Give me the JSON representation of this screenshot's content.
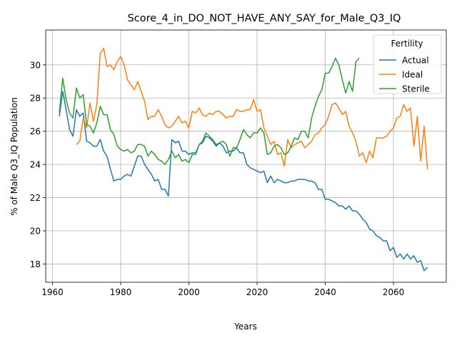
{
  "chart_data": {
    "type": "line",
    "title": "Score_4_in_DO_NOT_HAVE_ANY_SAY_for_Male_Q3_IQ",
    "xlabel": "Years",
    "ylabel": "% of Male Q3_IQ Population",
    "xlim": [
      1958,
      2075.5
    ],
    "ylim": [
      16.9,
      32.1
    ],
    "xticks": [
      1960,
      1980,
      2000,
      2020,
      2040,
      2060
    ],
    "yticks": [
      18,
      20,
      22,
      24,
      26,
      28,
      30
    ],
    "grid": true,
    "legend": {
      "title": "Fertility",
      "placement": "top-right"
    },
    "series": [
      {
        "name": "Actual",
        "color": "#1f77b4",
        "points": [
          [
            1962,
            26.9
          ],
          [
            1963,
            28.4
          ],
          [
            1964,
            27.3
          ],
          [
            1965,
            26.1
          ],
          [
            1966,
            25.7
          ],
          [
            1967,
            27.3
          ],
          [
            1968,
            26.9
          ],
          [
            1969,
            27.1
          ],
          [
            1970,
            25.4
          ],
          [
            1971,
            25.3
          ],
          [
            1972,
            25.1
          ],
          [
            1973,
            25.1
          ],
          [
            1974,
            25.5
          ],
          [
            1975,
            24.8
          ],
          [
            1976,
            24.5
          ],
          [
            1977,
            23.7
          ],
          [
            1978,
            23.0
          ],
          [
            1979,
            23.1
          ],
          [
            1980,
            23.1
          ],
          [
            1981,
            23.3
          ],
          [
            1982,
            23.4
          ],
          [
            1983,
            23.3
          ],
          [
            1984,
            23.9
          ],
          [
            1985,
            24.5
          ],
          [
            1986,
            24.5
          ],
          [
            1987,
            24.0
          ],
          [
            1988,
            23.7
          ],
          [
            1989,
            23.4
          ],
          [
            1990,
            23.0
          ],
          [
            1991,
            23.1
          ],
          [
            1992,
            22.5
          ],
          [
            1993,
            22.5
          ],
          [
            1994,
            22.1
          ],
          [
            1995,
            25.5
          ],
          [
            1996,
            25.3
          ],
          [
            1997,
            25.4
          ],
          [
            1998,
            24.8
          ],
          [
            1999,
            24.8
          ],
          [
            2000,
            24.6
          ],
          [
            2001,
            24.7
          ],
          [
            2002,
            24.7
          ],
          [
            2003,
            25.2
          ],
          [
            2004,
            25.3
          ],
          [
            2005,
            25.7
          ],
          [
            2006,
            25.6
          ],
          [
            2007,
            25.4
          ],
          [
            2008,
            25.1
          ],
          [
            2009,
            25.3
          ],
          [
            2010,
            25.1
          ],
          [
            2011,
            24.7
          ],
          [
            2012,
            24.8
          ],
          [
            2013,
            24.8
          ],
          [
            2014,
            25.0
          ],
          [
            2015,
            24.7
          ],
          [
            2016,
            24.7
          ],
          [
            2017,
            24.0
          ],
          [
            2018,
            23.8
          ],
          [
            2019,
            23.7
          ],
          [
            2020,
            23.6
          ],
          [
            2021,
            23.5
          ],
          [
            2022,
            23.6
          ],
          [
            2023,
            22.9
          ],
          [
            2024,
            23.3
          ],
          [
            2025,
            22.9
          ],
          [
            2026,
            23.1
          ],
          [
            2027,
            23.0
          ],
          [
            2028,
            22.9
          ],
          [
            2029,
            22.9
          ],
          [
            2030,
            23.0
          ],
          [
            2031,
            23.0
          ],
          [
            2032,
            23.1
          ],
          [
            2033,
            23.1
          ],
          [
            2034,
            23.1
          ],
          [
            2035,
            23.0
          ],
          [
            2036,
            23.0
          ],
          [
            2037,
            22.9
          ],
          [
            2038,
            22.5
          ],
          [
            2039,
            22.5
          ],
          [
            2040,
            21.9
          ],
          [
            2041,
            21.9
          ],
          [
            2042,
            21.8
          ],
          [
            2043,
            21.7
          ],
          [
            2044,
            21.5
          ],
          [
            2045,
            21.5
          ],
          [
            2046,
            21.3
          ],
          [
            2047,
            21.5
          ],
          [
            2048,
            21.2
          ],
          [
            2049,
            21.2
          ],
          [
            2050,
            21.0
          ],
          [
            2051,
            20.7
          ],
          [
            2052,
            20.5
          ],
          [
            2053,
            20.1
          ],
          [
            2054,
            20.0
          ],
          [
            2055,
            19.7
          ],
          [
            2056,
            19.6
          ],
          [
            2057,
            19.4
          ],
          [
            2058,
            19.4
          ],
          [
            2059,
            18.8
          ],
          [
            2060,
            19.0
          ],
          [
            2061,
            18.4
          ],
          [
            2062,
            18.6
          ],
          [
            2063,
            18.3
          ],
          [
            2064,
            18.6
          ],
          [
            2065,
            18.3
          ],
          [
            2066,
            18.5
          ],
          [
            2067,
            18.1
          ],
          [
            2068,
            18.2
          ],
          [
            2069,
            17.6
          ],
          [
            2070,
            17.8
          ]
        ]
      },
      {
        "name": "Ideal",
        "color": "#ff7f0e",
        "points": [
          [
            1967,
            25.2
          ],
          [
            1968,
            25.4
          ],
          [
            1969,
            26.8
          ],
          [
            1970,
            26.2
          ],
          [
            1971,
            27.7
          ],
          [
            1972,
            26.6
          ],
          [
            1973,
            27.6
          ],
          [
            1974,
            30.7
          ],
          [
            1975,
            31.0
          ],
          [
            1976,
            29.9
          ],
          [
            1977,
            30.0
          ],
          [
            1978,
            29.7
          ],
          [
            1979,
            30.2
          ],
          [
            1980,
            30.5
          ],
          [
            1981,
            30.0
          ],
          [
            1982,
            29.1
          ],
          [
            1983,
            28.8
          ],
          [
            1984,
            28.5
          ],
          [
            1985,
            29.0
          ],
          [
            1986,
            28.4
          ],
          [
            1987,
            27.8
          ],
          [
            1988,
            26.7
          ],
          [
            1989,
            26.9
          ],
          [
            1990,
            26.9
          ],
          [
            1991,
            27.3
          ],
          [
            1992,
            26.9
          ],
          [
            1993,
            26.4
          ],
          [
            1994,
            26.2
          ],
          [
            1995,
            26.3
          ],
          [
            1996,
            26.6
          ],
          [
            1997,
            26.9
          ],
          [
            1998,
            26.5
          ],
          [
            1999,
            26.6
          ],
          [
            2000,
            26.2
          ],
          [
            2001,
            27.2
          ],
          [
            2002,
            27.1
          ],
          [
            2003,
            27.4
          ],
          [
            2004,
            27.0
          ],
          [
            2005,
            26.9
          ],
          [
            2006,
            27.1
          ],
          [
            2007,
            27.0
          ],
          [
            2008,
            27.2
          ],
          [
            2009,
            27.2
          ],
          [
            2010,
            27.0
          ],
          [
            2011,
            26.8
          ],
          [
            2012,
            26.9
          ],
          [
            2013,
            26.9
          ],
          [
            2014,
            27.3
          ],
          [
            2015,
            27.2
          ],
          [
            2016,
            27.2
          ],
          [
            2017,
            27.3
          ],
          [
            2018,
            27.3
          ],
          [
            2019,
            27.9
          ],
          [
            2020,
            27.2
          ],
          [
            2021,
            27.3
          ],
          [
            2022,
            26.2
          ],
          [
            2023,
            25.7
          ],
          [
            2024,
            25.2
          ],
          [
            2025,
            25.4
          ],
          [
            2026,
            24.6
          ],
          [
            2027,
            24.7
          ],
          [
            2028,
            23.9
          ],
          [
            2029,
            25.5
          ],
          [
            2030,
            25.0
          ],
          [
            2031,
            25.2
          ],
          [
            2032,
            25.3
          ],
          [
            2033,
            25.4
          ],
          [
            2034,
            25.0
          ],
          [
            2035,
            25.2
          ],
          [
            2036,
            25.4
          ],
          [
            2037,
            25.8
          ],
          [
            2038,
            25.9
          ],
          [
            2039,
            26.2
          ],
          [
            2040,
            26.4
          ],
          [
            2041,
            26.9
          ],
          [
            2042,
            27.6
          ],
          [
            2043,
            27.7
          ],
          [
            2044,
            27.4
          ],
          [
            2045,
            27.0
          ],
          [
            2046,
            27.2
          ],
          [
            2047,
            26.3
          ],
          [
            2048,
            25.9
          ],
          [
            2049,
            25.4
          ],
          [
            2050,
            24.5
          ],
          [
            2051,
            24.7
          ],
          [
            2052,
            24.1
          ],
          [
            2053,
            24.8
          ],
          [
            2054,
            24.4
          ],
          [
            2055,
            25.6
          ],
          [
            2056,
            25.6
          ],
          [
            2057,
            25.6
          ],
          [
            2058,
            25.7
          ],
          [
            2059,
            26.0
          ],
          [
            2060,
            26.2
          ],
          [
            2061,
            26.8
          ],
          [
            2062,
            26.9
          ],
          [
            2063,
            27.6
          ],
          [
            2064,
            27.2
          ],
          [
            2065,
            27.4
          ],
          [
            2066,
            25.1
          ],
          [
            2067,
            26.9
          ],
          [
            2068,
            24.2
          ],
          [
            2069,
            26.3
          ],
          [
            2070,
            23.7
          ]
        ]
      },
      {
        "name": "Sterile",
        "color": "#2ca02c",
        "points": [
          [
            1962,
            27.1
          ],
          [
            1963,
            29.2
          ],
          [
            1964,
            27.9
          ],
          [
            1965,
            27.1
          ],
          [
            1966,
            26.8
          ],
          [
            1967,
            28.6
          ],
          [
            1968,
            28.0
          ],
          [
            1969,
            28.2
          ],
          [
            1970,
            26.4
          ],
          [
            1971,
            26.3
          ],
          [
            1972,
            25.9
          ],
          [
            1973,
            26.5
          ],
          [
            1974,
            27.5
          ],
          [
            1975,
            27.0
          ],
          [
            1976,
            27.0
          ],
          [
            1977,
            26.1
          ],
          [
            1978,
            25.8
          ],
          [
            1979,
            25.1
          ],
          [
            1980,
            24.9
          ],
          [
            1981,
            24.8
          ],
          [
            1982,
            24.9
          ],
          [
            1983,
            24.7
          ],
          [
            1984,
            24.8
          ],
          [
            1985,
            25.2
          ],
          [
            1986,
            25.2
          ],
          [
            1987,
            25.1
          ],
          [
            1988,
            24.5
          ],
          [
            1989,
            24.8
          ],
          [
            1990,
            24.6
          ],
          [
            1991,
            24.3
          ],
          [
            1992,
            24.2
          ],
          [
            1993,
            24.0
          ],
          [
            1994,
            24.3
          ],
          [
            1995,
            24.8
          ],
          [
            1996,
            24.4
          ],
          [
            1997,
            24.6
          ],
          [
            1998,
            24.2
          ],
          [
            1999,
            24.3
          ],
          [
            2000,
            24.1
          ],
          [
            2001,
            24.6
          ],
          [
            2002,
            24.6
          ],
          [
            2003,
            25.2
          ],
          [
            2004,
            25.4
          ],
          [
            2005,
            25.9
          ],
          [
            2006,
            25.7
          ],
          [
            2007,
            25.5
          ],
          [
            2008,
            25.2
          ],
          [
            2009,
            25.3
          ],
          [
            2010,
            25.4
          ],
          [
            2011,
            25.2
          ],
          [
            2012,
            24.5
          ],
          [
            2013,
            25.0
          ],
          [
            2014,
            25.0
          ],
          [
            2015,
            25.5
          ],
          [
            2016,
            26.1
          ],
          [
            2017,
            25.8
          ],
          [
            2018,
            25.6
          ],
          [
            2019,
            25.9
          ],
          [
            2020,
            25.9
          ],
          [
            2021,
            26.2
          ],
          [
            2022,
            25.9
          ],
          [
            2023,
            24.6
          ],
          [
            2024,
            24.7
          ],
          [
            2025,
            25.1
          ],
          [
            2026,
            25.2
          ],
          [
            2027,
            25.0
          ],
          [
            2028,
            24.6
          ],
          [
            2029,
            24.7
          ],
          [
            2030,
            25.1
          ],
          [
            2031,
            25.6
          ],
          [
            2032,
            25.5
          ],
          [
            2033,
            26.0
          ],
          [
            2034,
            26.0
          ],
          [
            2035,
            25.6
          ],
          [
            2036,
            26.8
          ],
          [
            2037,
            27.5
          ],
          [
            2038,
            28.1
          ],
          [
            2039,
            28.5
          ],
          [
            2040,
            29.5
          ],
          [
            2041,
            29.5
          ],
          [
            2042,
            29.9
          ],
          [
            2043,
            30.4
          ],
          [
            2044,
            30.0
          ],
          [
            2045,
            29.1
          ],
          [
            2046,
            28.3
          ],
          [
            2047,
            29.0
          ],
          [
            2048,
            28.4
          ],
          [
            2049,
            30.2
          ],
          [
            2050,
            30.4
          ]
        ]
      }
    ]
  }
}
